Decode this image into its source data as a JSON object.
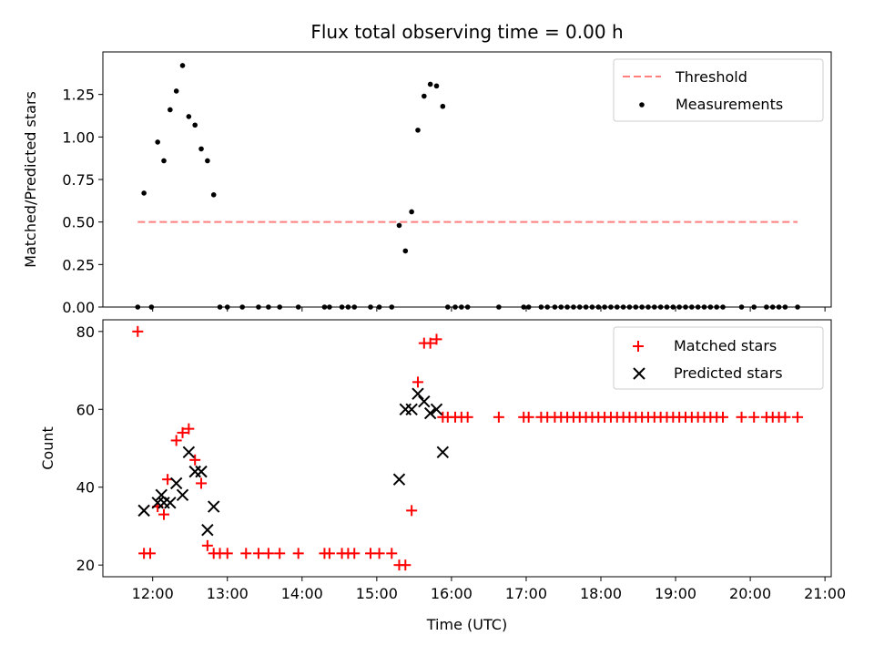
{
  "chart_data": [
    {
      "type": "scatter",
      "title": "Flux total observing time = 0.00 h",
      "xlabel": "",
      "ylabel": "Matched/Predicted stars",
      "xlim": [
        "11:20",
        "21:05"
      ],
      "ylim": [
        0,
        1.5
      ],
      "xticks": [
        "12:00",
        "13:00",
        "14:00",
        "15:00",
        "16:00",
        "17:00",
        "18:00",
        "19:00",
        "20:00",
        "21:00"
      ],
      "show_xtick_labels": false,
      "yticks": [
        0.0,
        0.25,
        0.5,
        0.75,
        1.0,
        1.25
      ],
      "ytick_labels": [
        "0.00",
        "0.25",
        "0.50",
        "0.75",
        "1.00",
        "1.25"
      ],
      "grid": false,
      "legend_position": "top-right",
      "threshold": {
        "name": "Threshold",
        "y": 0.5,
        "x_start": "11:48",
        "x_end": "20:38",
        "color": "#ff7f7f"
      },
      "series": [
        {
          "name": "Measurements",
          "color": "#000000",
          "marker": "dot",
          "points": [
            [
              "11:48",
              0.0
            ],
            [
              "11:53",
              0.67
            ],
            [
              "11:59",
              0.0
            ],
            [
              "12:04",
              0.97
            ],
            [
              "12:09",
              0.86
            ],
            [
              "12:14",
              1.16
            ],
            [
              "12:19",
              1.27
            ],
            [
              "12:24",
              1.42
            ],
            [
              "12:29",
              1.12
            ],
            [
              "12:34",
              1.07
            ],
            [
              "12:39",
              0.93
            ],
            [
              "12:44",
              0.86
            ],
            [
              "12:49",
              0.66
            ],
            [
              "12:54",
              0.0
            ],
            [
              "13:00",
              0.0
            ],
            [
              "13:12",
              0.0
            ],
            [
              "13:25",
              0.0
            ],
            [
              "13:33",
              0.0
            ],
            [
              "13:42",
              0.0
            ],
            [
              "13:57",
              0.0
            ],
            [
              "14:18",
              0.0
            ],
            [
              "14:22",
              0.0
            ],
            [
              "14:32",
              0.0
            ],
            [
              "14:37",
              0.0
            ],
            [
              "14:42",
              0.0
            ],
            [
              "14:55",
              0.0
            ],
            [
              "15:02",
              0.0
            ],
            [
              "15:12",
              0.0
            ],
            [
              "15:18",
              0.48
            ],
            [
              "15:23",
              0.33
            ],
            [
              "15:28",
              0.56
            ],
            [
              "15:33",
              1.04
            ],
            [
              "15:38",
              1.24
            ],
            [
              "15:43",
              1.31
            ],
            [
              "15:48",
              1.3
            ],
            [
              "15:53",
              1.18
            ],
            [
              "15:57",
              0.0
            ],
            [
              "16:03",
              0.0
            ],
            [
              "16:08",
              0.0
            ],
            [
              "16:13",
              0.0
            ],
            [
              "16:38",
              0.0
            ],
            [
              "16:58",
              0.0
            ],
            [
              "17:02",
              0.0
            ],
            [
              "17:12",
              0.0
            ],
            [
              "17:17",
              0.0
            ],
            [
              "17:23",
              0.0
            ],
            [
              "17:28",
              0.0
            ],
            [
              "17:33",
              0.0
            ],
            [
              "17:38",
              0.0
            ],
            [
              "17:43",
              0.0
            ],
            [
              "17:48",
              0.0
            ],
            [
              "17:53",
              0.0
            ],
            [
              "17:58",
              0.0
            ],
            [
              "18:03",
              0.0
            ],
            [
              "18:08",
              0.0
            ],
            [
              "18:13",
              0.0
            ],
            [
              "18:18",
              0.0
            ],
            [
              "18:23",
              0.0
            ],
            [
              "18:28",
              0.0
            ],
            [
              "18:33",
              0.0
            ],
            [
              "18:38",
              0.0
            ],
            [
              "18:43",
              0.0
            ],
            [
              "18:48",
              0.0
            ],
            [
              "18:53",
              0.0
            ],
            [
              "18:58",
              0.0
            ],
            [
              "19:03",
              0.0
            ],
            [
              "19:08",
              0.0
            ],
            [
              "19:13",
              0.0
            ],
            [
              "19:18",
              0.0
            ],
            [
              "19:23",
              0.0
            ],
            [
              "19:28",
              0.0
            ],
            [
              "19:33",
              0.0
            ],
            [
              "19:38",
              0.0
            ],
            [
              "19:53",
              0.0
            ],
            [
              "20:03",
              0.0
            ],
            [
              "20:13",
              0.0
            ],
            [
              "20:18",
              0.0
            ],
            [
              "20:23",
              0.0
            ],
            [
              "20:28",
              0.0
            ],
            [
              "20:38",
              0.0
            ]
          ]
        }
      ]
    },
    {
      "type": "scatter",
      "title": "",
      "xlabel": "Time (UTC)",
      "ylabel": "Count",
      "xlim": [
        "11:20",
        "21:05"
      ],
      "ylim": [
        17,
        83
      ],
      "xticks": [
        "12:00",
        "13:00",
        "14:00",
        "15:00",
        "16:00",
        "17:00",
        "18:00",
        "19:00",
        "20:00",
        "21:00"
      ],
      "xtick_labels": [
        "12:00",
        "13:00",
        "14:00",
        "15:00",
        "16:00",
        "17:00",
        "18:00",
        "19:00",
        "20:00",
        "21:00"
      ],
      "yticks": [
        20,
        40,
        60,
        80
      ],
      "ytick_labels": [
        "20",
        "40",
        "60",
        "80"
      ],
      "grid": false,
      "legend_position": "top-right",
      "series": [
        {
          "name": "Matched stars",
          "color": "#ff0000",
          "marker": "plus",
          "points": [
            [
              "11:48",
              80
            ],
            [
              "11:53",
              23
            ],
            [
              "11:58",
              23
            ],
            [
              "12:04",
              35
            ],
            [
              "12:09",
              33
            ],
            [
              "12:12",
              42
            ],
            [
              "12:19",
              52
            ],
            [
              "12:24",
              54
            ],
            [
              "12:29",
              55
            ],
            [
              "12:34",
              47
            ],
            [
              "12:39",
              41
            ],
            [
              "12:44",
              25
            ],
            [
              "12:49",
              23
            ],
            [
              "12:54",
              23
            ],
            [
              "13:00",
              23
            ],
            [
              "13:15",
              23
            ],
            [
              "13:25",
              23
            ],
            [
              "13:33",
              23
            ],
            [
              "13:42",
              23
            ],
            [
              "13:57",
              23
            ],
            [
              "14:18",
              23
            ],
            [
              "14:22",
              23
            ],
            [
              "14:32",
              23
            ],
            [
              "14:37",
              23
            ],
            [
              "14:42",
              23
            ],
            [
              "14:55",
              23
            ],
            [
              "15:02",
              23
            ],
            [
              "15:12",
              23
            ],
            [
              "15:18",
              20
            ],
            [
              "15:23",
              20
            ],
            [
              "15:28",
              34
            ],
            [
              "15:33",
              67
            ],
            [
              "15:38",
              77
            ],
            [
              "15:43",
              77
            ],
            [
              "15:48",
              78
            ],
            [
              "15:53",
              58
            ],
            [
              "15:57",
              58
            ],
            [
              "16:03",
              58
            ],
            [
              "16:08",
              58
            ],
            [
              "16:13",
              58
            ],
            [
              "16:38",
              58
            ],
            [
              "16:58",
              58
            ],
            [
              "17:02",
              58
            ],
            [
              "17:12",
              58
            ],
            [
              "17:17",
              58
            ],
            [
              "17:23",
              58
            ],
            [
              "17:28",
              58
            ],
            [
              "17:33",
              58
            ],
            [
              "17:38",
              58
            ],
            [
              "17:43",
              58
            ],
            [
              "17:48",
              58
            ],
            [
              "17:53",
              58
            ],
            [
              "17:58",
              58
            ],
            [
              "18:03",
              58
            ],
            [
              "18:08",
              58
            ],
            [
              "18:13",
              58
            ],
            [
              "18:18",
              58
            ],
            [
              "18:23",
              58
            ],
            [
              "18:28",
              58
            ],
            [
              "18:33",
              58
            ],
            [
              "18:38",
              58
            ],
            [
              "18:43",
              58
            ],
            [
              "18:48",
              58
            ],
            [
              "18:53",
              58
            ],
            [
              "18:58",
              58
            ],
            [
              "19:03",
              58
            ],
            [
              "19:08",
              58
            ],
            [
              "19:13",
              58
            ],
            [
              "19:18",
              58
            ],
            [
              "19:23",
              58
            ],
            [
              "19:28",
              58
            ],
            [
              "19:33",
              58
            ],
            [
              "19:38",
              58
            ],
            [
              "19:53",
              58
            ],
            [
              "20:03",
              58
            ],
            [
              "20:13",
              58
            ],
            [
              "20:18",
              58
            ],
            [
              "20:23",
              58
            ],
            [
              "20:28",
              58
            ],
            [
              "20:38",
              58
            ]
          ]
        },
        {
          "name": "Predicted stars",
          "color": "#000000",
          "marker": "x",
          "points": [
            [
              "11:53",
              34
            ],
            [
              "12:04",
              36
            ],
            [
              "12:07",
              38
            ],
            [
              "12:09",
              36
            ],
            [
              "12:14",
              36
            ],
            [
              "12:19",
              41
            ],
            [
              "12:24",
              38
            ],
            [
              "12:29",
              49
            ],
            [
              "12:34",
              44
            ],
            [
              "12:39",
              44
            ],
            [
              "12:44",
              29
            ],
            [
              "12:49",
              35
            ],
            [
              "15:18",
              42
            ],
            [
              "15:23",
              60
            ],
            [
              "15:28",
              60
            ],
            [
              "15:33",
              64
            ],
            [
              "15:38",
              62
            ],
            [
              "15:43",
              59
            ],
            [
              "15:48",
              60
            ],
            [
              "15:53",
              49
            ]
          ]
        }
      ]
    }
  ]
}
